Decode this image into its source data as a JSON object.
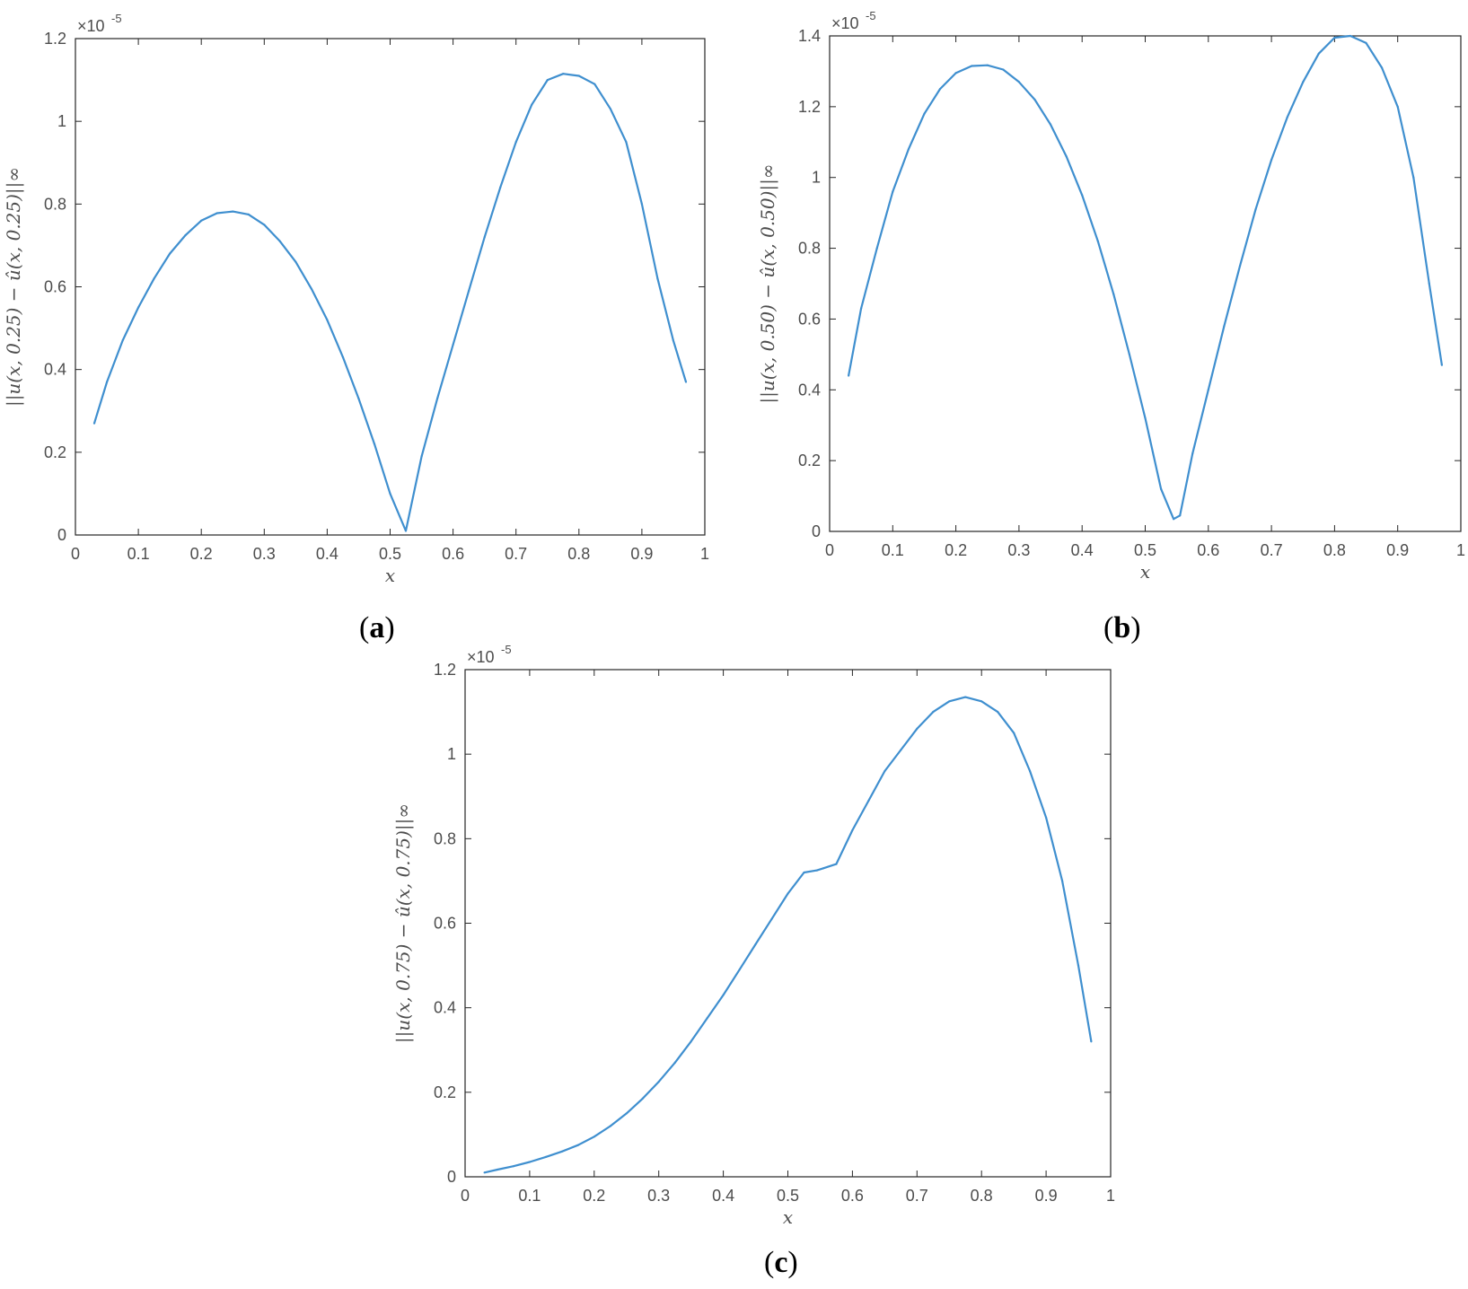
{
  "line_color": "#3f8fcf",
  "axis_color": "#262626",
  "chart_data": [
    {
      "type": "line",
      "panel": "a",
      "xlabel": "x",
      "ylabel": "||u(x, 0.25) − û(x, 0.25)||∞",
      "exponent_label": "×10",
      "exponent_power": "-5",
      "xlim": [
        0,
        1
      ],
      "ylim": [
        0,
        1.2
      ],
      "xticks": [
        "0",
        "0.1",
        "0.2",
        "0.3",
        "0.4",
        "0.5",
        "0.6",
        "0.7",
        "0.8",
        "0.9",
        "1"
      ],
      "yticks": [
        "0",
        "0.2",
        "0.4",
        "0.6",
        "0.8",
        "1",
        "1.2"
      ],
      "x": [
        0.03,
        0.05,
        0.075,
        0.1,
        0.125,
        0.15,
        0.175,
        0.2,
        0.225,
        0.25,
        0.275,
        0.3,
        0.325,
        0.35,
        0.375,
        0.4,
        0.425,
        0.45,
        0.475,
        0.5,
        0.525,
        0.55,
        0.575,
        0.6,
        0.625,
        0.65,
        0.675,
        0.7,
        0.725,
        0.75,
        0.775,
        0.8,
        0.825,
        0.85,
        0.875,
        0.9,
        0.925,
        0.95,
        0.97
      ],
      "values": [
        0.27,
        0.37,
        0.47,
        0.55,
        0.62,
        0.68,
        0.725,
        0.76,
        0.778,
        0.782,
        0.775,
        0.75,
        0.71,
        0.66,
        0.595,
        0.52,
        0.43,
        0.33,
        0.22,
        0.1,
        0.01,
        0.19,
        0.33,
        0.46,
        0.59,
        0.72,
        0.84,
        0.95,
        1.04,
        1.1,
        1.115,
        1.11,
        1.09,
        1.03,
        0.95,
        0.8,
        0.62,
        0.47,
        0.37
      ]
    },
    {
      "type": "line",
      "panel": "b",
      "xlabel": "x",
      "ylabel": "||u(x, 0.50) − û(x, 0.50)||∞",
      "exponent_label": "×10",
      "exponent_power": "-5",
      "xlim": [
        0,
        1
      ],
      "ylim": [
        0,
        1.4
      ],
      "xticks": [
        "0",
        "0.1",
        "0.2",
        "0.3",
        "0.4",
        "0.5",
        "0.6",
        "0.7",
        "0.8",
        "0.9",
        "1"
      ],
      "yticks": [
        "0",
        "0.2",
        "0.4",
        "0.6",
        "0.8",
        "1",
        "1.2",
        "1.4"
      ],
      "x": [
        0.03,
        0.05,
        0.075,
        0.1,
        0.125,
        0.15,
        0.175,
        0.2,
        0.225,
        0.25,
        0.275,
        0.3,
        0.325,
        0.35,
        0.375,
        0.4,
        0.425,
        0.45,
        0.475,
        0.5,
        0.525,
        0.545,
        0.555,
        0.575,
        0.6,
        0.625,
        0.65,
        0.675,
        0.7,
        0.725,
        0.75,
        0.775,
        0.8,
        0.825,
        0.85,
        0.875,
        0.9,
        0.925,
        0.95,
        0.97
      ],
      "values": [
        0.44,
        0.63,
        0.8,
        0.96,
        1.08,
        1.18,
        1.25,
        1.295,
        1.315,
        1.317,
        1.305,
        1.27,
        1.22,
        1.15,
        1.06,
        0.95,
        0.82,
        0.67,
        0.5,
        0.32,
        0.12,
        0.035,
        0.045,
        0.22,
        0.4,
        0.58,
        0.75,
        0.91,
        1.05,
        1.17,
        1.27,
        1.35,
        1.395,
        1.4,
        1.38,
        1.31,
        1.2,
        1.0,
        0.7,
        0.47
      ]
    },
    {
      "type": "line",
      "panel": "c",
      "xlabel": "x",
      "ylabel": "||u(x, 0.75) − û(x, 0.75)||∞",
      "exponent_label": "×10",
      "exponent_power": "-5",
      "xlim": [
        0,
        1
      ],
      "ylim": [
        0,
        1.2
      ],
      "xticks": [
        "0",
        "0.1",
        "0.2",
        "0.3",
        "0.4",
        "0.5",
        "0.6",
        "0.7",
        "0.8",
        "0.9",
        "1"
      ],
      "yticks": [
        "0",
        "0.2",
        "0.4",
        "0.6",
        "0.8",
        "1",
        "1.2"
      ],
      "x": [
        0.03,
        0.05,
        0.075,
        0.1,
        0.125,
        0.15,
        0.175,
        0.2,
        0.225,
        0.25,
        0.275,
        0.3,
        0.325,
        0.35,
        0.375,
        0.4,
        0.425,
        0.45,
        0.475,
        0.5,
        0.525,
        0.545,
        0.555,
        0.575,
        0.6,
        0.625,
        0.65,
        0.675,
        0.7,
        0.725,
        0.75,
        0.775,
        0.8,
        0.825,
        0.85,
        0.875,
        0.9,
        0.925,
        0.95,
        0.97
      ],
      "values": [
        0.01,
        0.017,
        0.025,
        0.035,
        0.047,
        0.06,
        0.075,
        0.095,
        0.12,
        0.15,
        0.185,
        0.225,
        0.27,
        0.32,
        0.375,
        0.43,
        0.49,
        0.55,
        0.61,
        0.67,
        0.72,
        0.725,
        0.73,
        0.74,
        0.82,
        0.89,
        0.96,
        1.01,
        1.06,
        1.1,
        1.125,
        1.135,
        1.125,
        1.1,
        1.05,
        0.96,
        0.85,
        0.7,
        0.5,
        0.32
      ]
    }
  ],
  "captions": {
    "a": "a",
    "b": "b",
    "c": "c"
  }
}
